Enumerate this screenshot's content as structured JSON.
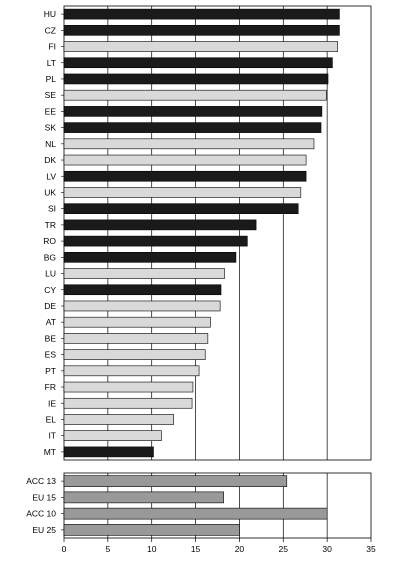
{
  "chart_data": {
    "type": "bar",
    "orientation": "horizontal",
    "colors": {
      "dark": "#1a1a1a",
      "light": "#d9d9d9",
      "mid": "#999999",
      "grid": "#000000"
    },
    "xlim": [
      0,
      35
    ],
    "xticks": [
      "0",
      "5",
      "10",
      "15",
      "20",
      "25",
      "30",
      "35"
    ],
    "grid": true,
    "panels": [
      {
        "name": "countries",
        "categories": [
          "HU",
          "CZ",
          "FI",
          "LT",
          "PL",
          "SE",
          "EE",
          "SK",
          "NL",
          "DK",
          "LV",
          "UK",
          "SI",
          "TR",
          "RO",
          "BG",
          "LU",
          "CY",
          "DE",
          "AT",
          "BE",
          "ES",
          "PT",
          "FR",
          "IE",
          "EL",
          "IT",
          "MT"
        ],
        "values": [
          31.4,
          31.4,
          31.2,
          30.6,
          30.1,
          29.9,
          29.4,
          29.3,
          28.5,
          27.6,
          27.6,
          27.0,
          26.7,
          21.9,
          20.9,
          19.6,
          18.3,
          17.9,
          17.8,
          16.7,
          16.4,
          16.1,
          15.4,
          14.7,
          14.6,
          12.5,
          11.1,
          10.2
        ],
        "shades": [
          "dark",
          "dark",
          "light",
          "dark",
          "dark",
          "light",
          "dark",
          "dark",
          "light",
          "light",
          "dark",
          "light",
          "dark",
          "dark",
          "dark",
          "dark",
          "light",
          "dark",
          "light",
          "light",
          "light",
          "light",
          "light",
          "light",
          "light",
          "light",
          "light",
          "dark"
        ]
      },
      {
        "name": "aggregates",
        "categories": [
          "ACC 13",
          "EU 15",
          "ACC 10",
          "EU 25"
        ],
        "values": [
          25.4,
          18.2,
          30.0,
          20.0
        ],
        "shades": [
          "mid",
          "mid",
          "mid",
          "mid"
        ]
      }
    ]
  }
}
